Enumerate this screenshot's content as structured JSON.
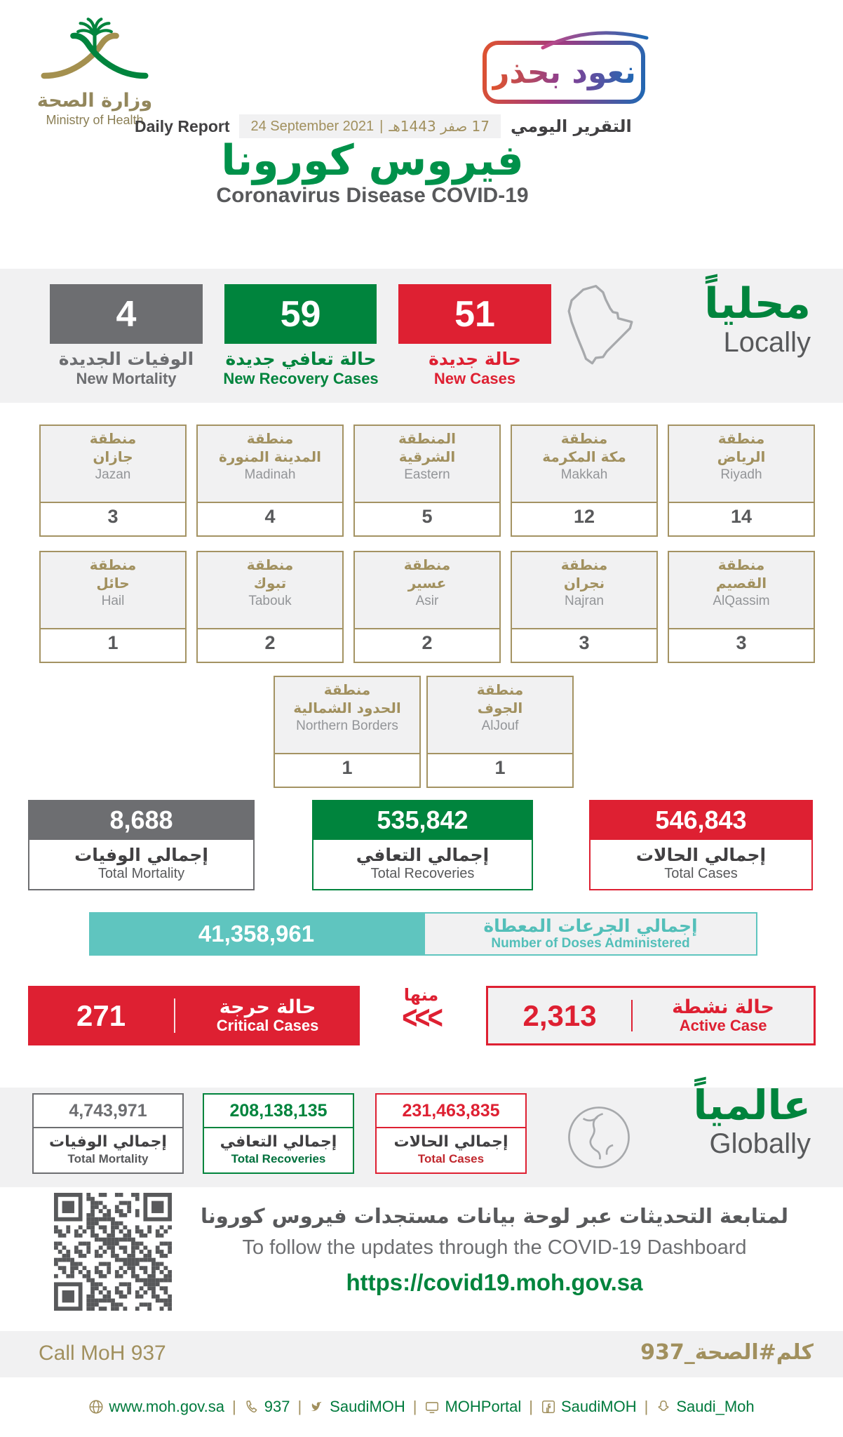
{
  "header": {
    "ministry_name_ar": "وزارة الصحة",
    "ministry_name_en": "Ministry of Health",
    "campaign_badge": "نعود بحذر",
    "report_label_en": "Daily Report",
    "date_gregorian": "24 September 2021",
    "date_separator": "|",
    "date_hijri": "17 صفر 1443هـ",
    "report_label_ar": "التقرير اليومي",
    "title_ar": "فيروس كورونا",
    "title_en": "Coronavirus Disease COVID-19"
  },
  "locally": {
    "label_ar": "محلياً",
    "label_en": "Locally",
    "new_mortality": {
      "value": "4",
      "label_ar": "الوفيات الجديدة",
      "label_en": "New Mortality"
    },
    "new_recoveries": {
      "value": "59",
      "label_ar": "حالة تعافي جديدة",
      "label_en": "New Recovery Cases"
    },
    "new_cases": {
      "value": "51",
      "label_ar": "حالة جديدة",
      "label_en": "New Cases"
    }
  },
  "regions": {
    "row1": [
      {
        "name_ar1": "منطقة",
        "name_ar2": "جازان",
        "name_en": "Jazan",
        "value": "3"
      },
      {
        "name_ar1": "منطقة",
        "name_ar2": "المدينة المنورة",
        "name_en": "Madinah",
        "value": "4"
      },
      {
        "name_ar1": "المنطقة",
        "name_ar2": "الشرقية",
        "name_en": "Eastern",
        "value": "5"
      },
      {
        "name_ar1": "منطقة",
        "name_ar2": "مكة المكرمة",
        "name_en": "Makkah",
        "value": "12"
      },
      {
        "name_ar1": "منطقة",
        "name_ar2": "الرياض",
        "name_en": "Riyadh",
        "value": "14"
      }
    ],
    "row2": [
      {
        "name_ar1": "منطقة",
        "name_ar2": "حائل",
        "name_en": "Hail",
        "value": "1"
      },
      {
        "name_ar1": "منطقة",
        "name_ar2": "تبوك",
        "name_en": "Tabouk",
        "value": "2"
      },
      {
        "name_ar1": "منطقة",
        "name_ar2": "عسير",
        "name_en": "Asir",
        "value": "2"
      },
      {
        "name_ar1": "منطقة",
        "name_ar2": "نجران",
        "name_en": "Najran",
        "value": "3"
      },
      {
        "name_ar1": "منطقة",
        "name_ar2": "القصيم",
        "name_en": "AlQassim",
        "value": "3"
      }
    ],
    "row3": [
      {
        "name_ar1": "منطقة",
        "name_ar2": "الحدود الشمالية",
        "name_en": "Northern Borders",
        "value": "1"
      },
      {
        "name_ar1": "منطقة",
        "name_ar2": "الجوف",
        "name_en": "AlJouf",
        "value": "1"
      }
    ]
  },
  "totals": {
    "mortality": {
      "value": "8,688",
      "label_ar": "إجمالي الوفيات",
      "label_en": "Total Mortality"
    },
    "recoveries": {
      "value": "535,842",
      "label_ar": "إجمالي التعافي",
      "label_en": "Total Recoveries"
    },
    "cases": {
      "value": "546,843",
      "label_ar": "إجمالي الحالات",
      "label_en": "Total Cases"
    }
  },
  "doses": {
    "value": "41,358,961",
    "label_ar": "إجمالي الجرعات المعطاة",
    "label_en": "Number of Doses Administered"
  },
  "status": {
    "critical": {
      "value": "271",
      "label_ar": "حالة حرجة",
      "label_en": "Critical Cases"
    },
    "of_which_ar": "منها",
    "chevrons": "<<<",
    "active": {
      "value": "2,313",
      "label_ar": "حالة نشطة",
      "label_en": "Active Case"
    }
  },
  "globally": {
    "label_ar": "عالمياً",
    "label_en": "Globally",
    "mortality": {
      "value": "4,743,971",
      "label_ar": "إجمالي الوفيات",
      "label_en": "Total Mortality"
    },
    "recoveries": {
      "value": "208,138,135",
      "label_ar": "إجمالي التعافي",
      "label_en": "Total Recoveries"
    },
    "cases": {
      "value": "231,463,835",
      "label_ar": "إجمالي الحالات",
      "label_en": "Total Cases"
    }
  },
  "dashboard": {
    "note_ar": "لمتابعة التحديثات عبر لوحة بيانات مستجدات فيروس كورونا",
    "note_en": "To follow the updates through the COVID-19 Dashboard",
    "url": "https://covid19.moh.gov.sa"
  },
  "footer": {
    "call_en": "Call MoH 937",
    "hashtag_ar": "كلم#الصحة_937",
    "separator": "|",
    "links": [
      {
        "icon": "globe-icon",
        "label": "www.moh.gov.sa"
      },
      {
        "icon": "phone-icon",
        "label": "937"
      },
      {
        "icon": "twitter-icon",
        "label": "SaudiMOH"
      },
      {
        "icon": "tv-icon",
        "label": "MOHPortal"
      },
      {
        "icon": "facebook-icon",
        "label": "SaudiMOH"
      },
      {
        "icon": "snapchat-icon",
        "label": "Saudi_Moh"
      }
    ]
  },
  "colors": {
    "green": "#00843d",
    "red": "#de2032",
    "gray": "#6d6e71",
    "tan": "#a1905e",
    "teal": "#5fc5bf",
    "band_bg": "#f1f1f2"
  }
}
